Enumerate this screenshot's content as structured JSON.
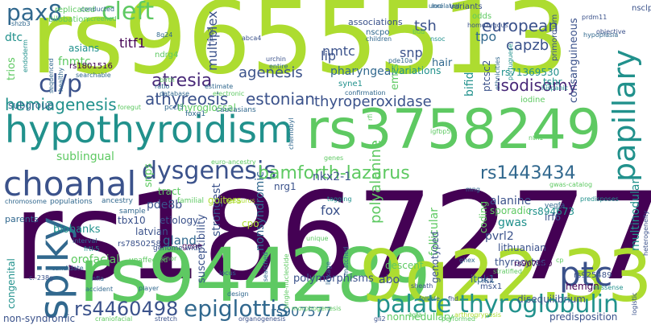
{
  "words": [
    {
      "text": "rs9655513",
      "color": "#addc30"
    },
    {
      "text": "rs1867277",
      "color": "#440154"
    },
    {
      "text": "rs944289",
      "color": "#5ec962"
    },
    {
      "text": "9q22.33",
      "color": "#addc30"
    },
    {
      "text": "hypothyroidism",
      "color": "#21918c"
    },
    {
      "text": "rs3758249",
      "color": "#5ec962"
    },
    {
      "text": "choanal",
      "color": "#3b528b"
    },
    {
      "text": "spiky",
      "color": "#31688e"
    },
    {
      "text": "ptc",
      "color": "#3b528b"
    },
    {
      "text": "papillary",
      "color": "#21918c"
    },
    {
      "text": "palate",
      "color": "#21918c"
    },
    {
      "text": "thyroglobulin",
      "color": "#21918c"
    },
    {
      "text": "epiglottis",
      "color": "#31688e"
    },
    {
      "text": "rs4460498",
      "color": "#3b528b"
    },
    {
      "text": "dysgenesis",
      "color": "#3b528b"
    },
    {
      "text": "bamforth-lazarus",
      "color": "#5ec962"
    },
    {
      "text": "rs1443434",
      "color": "#31688e"
    },
    {
      "text": "cleft",
      "color": "#5ec962"
    },
    {
      "text": "pax8",
      "color": "#31688e"
    },
    {
      "text": "cl/p",
      "color": "#3b528b"
    },
    {
      "text": "atresia",
      "color": "#482878"
    },
    {
      "text": "agenesis",
      "color": "#3b528b"
    },
    {
      "text": "athyreosis",
      "color": "#3b528b"
    },
    {
      "text": "estonian",
      "color": "#3b528b"
    },
    {
      "text": "thyroperoxidase",
      "color": "#3b528b"
    },
    {
      "text": "hemiagenesis",
      "color": "#21918c"
    },
    {
      "text": "sublingual",
      "color": "#5ec962"
    },
    {
      "text": "european",
      "color": "#3b528b"
    },
    {
      "text": "isodisomy",
      "color": "#482878"
    },
    {
      "text": "capzb",
      "color": "#3b528b"
    },
    {
      "text": "tsh",
      "color": "#3b528b"
    },
    {
      "text": "nmtc",
      "color": "#3b528b"
    },
    {
      "text": "titf1",
      "color": "#440154"
    },
    {
      "text": "multiplex",
      "color": "#3b528b"
    },
    {
      "text": "tpo",
      "color": "#31688e"
    },
    {
      "text": "snp",
      "color": "#3b528b"
    },
    {
      "text": "lip",
      "color": "#3b528b"
    },
    {
      "text": "fnmtc",
      "color": "#5ec962"
    },
    {
      "text": "trios",
      "color": "#5ec962"
    },
    {
      "text": "dtc",
      "color": "#21918c"
    },
    {
      "text": "asians",
      "color": "#21918c"
    },
    {
      "text": "rs1801516",
      "color": "#440154"
    },
    {
      "text": "subgroup",
      "color": "#31688e"
    },
    {
      "text": "pharyngeal",
      "color": "#31688e"
    },
    {
      "text": "variations",
      "color": "#21918c"
    },
    {
      "text": "hair",
      "color": "#31688e"
    },
    {
      "text": "emrs",
      "color": "#5ec962"
    },
    {
      "text": "bifid",
      "color": "#21918c"
    },
    {
      "text": "ptcsc2",
      "color": "#3b528b"
    },
    {
      "text": "rs71369530",
      "color": "#21918c"
    },
    {
      "text": "tshr",
      "color": "#21918c"
    },
    {
      "text": "consanguineous",
      "color": "#3b528b"
    },
    {
      "text": "iodine",
      "color": "#5ec962"
    },
    {
      "text": "primordium",
      "color": "#3b528b"
    },
    {
      "text": "syne1",
      "color": "#21918c"
    },
    {
      "text": "nkx2-1",
      "color": "#3b528b"
    },
    {
      "text": "snps",
      "color": "#5ec962"
    },
    {
      "text": "pde8b",
      "color": "#3b528b"
    },
    {
      "text": "polyalanine",
      "color": "#5ec962"
    },
    {
      "text": "nonsyndromic",
      "color": "#31688e"
    },
    {
      "text": "fox",
      "color": "#3b528b"
    },
    {
      "text": "alanine",
      "color": "#3b528b"
    },
    {
      "text": "gwas",
      "color": "#21918c"
    },
    {
      "text": "pvrl2",
      "color": "#3b528b"
    },
    {
      "text": "multinodular",
      "color": "#21918c"
    },
    {
      "text": "abo",
      "color": "#3b528b"
    },
    {
      "text": "follicular",
      "color": "#5ec962"
    },
    {
      "text": "strongest",
      "color": "#3b528b"
    },
    {
      "text": "gland",
      "color": "#31688e"
    },
    {
      "text": "orofacial",
      "color": "#5ec962"
    },
    {
      "text": "congenital",
      "color": "#21918c"
    },
    {
      "text": "etiology",
      "color": "#3b528b"
    },
    {
      "text": "latvian",
      "color": "#3b528b"
    },
    {
      "text": "lithuanian",
      "color": "#3b528b"
    },
    {
      "text": "biobanks",
      "color": "#21918c"
    },
    {
      "text": "thyrocytes",
      "color": "#3b528b"
    },
    {
      "text": "itpk1",
      "color": "#31688e"
    },
    {
      "text": "rs907577",
      "color": "#31688e"
    },
    {
      "text": "polymorphisms",
      "color": "#3b528b"
    },
    {
      "text": "rs894673",
      "color": "#21918c"
    },
    {
      "text": "sporadic",
      "color": "#5ec962"
    },
    {
      "text": "coding",
      "color": "#5ec962"
    },
    {
      "text": "irf6",
      "color": "#3b528b"
    },
    {
      "text": "rs907580",
      "color": "#440154"
    },
    {
      "text": "rs925489",
      "color": "#3b528b"
    },
    {
      "text": "hemgn",
      "color": "#440154"
    },
    {
      "text": "nrg1",
      "color": "#3b528b"
    },
    {
      "text": "descent",
      "color": "#5ec962"
    },
    {
      "text": "genotyped",
      "color": "#3b528b"
    },
    {
      "text": "susceptibility",
      "color": "#3b528b"
    },
    {
      "text": "goiters",
      "color": "#addc30"
    },
    {
      "text": "tract",
      "color": "#5ec962"
    },
    {
      "text": "tbx10",
      "color": "#3b528b"
    },
    {
      "text": "rs7850258",
      "color": "#3b528b"
    },
    {
      "text": "gene",
      "color": "#440154"
    },
    {
      "text": "parents",
      "color": "#31688e"
    },
    {
      "text": "non-syndromic",
      "color": "#3b528b"
    },
    {
      "text": "disequilibrium",
      "color": "#3b528b"
    },
    {
      "text": "predisposition",
      "color": "#3b528b"
    },
    {
      "text": "nonmedullary",
      "color": "#5ec962"
    },
    {
      "text": "msx1",
      "color": "#3b528b"
    },
    {
      "text": "thyroglossal",
      "color": "#5ec962"
    },
    {
      "text": "associations",
      "color": "#3b528b"
    },
    {
      "text": "nscpo",
      "color": "#31688e"
    },
    {
      "text": "replicated",
      "color": "#5ec962"
    },
    {
      "text": "bilobation",
      "color": "#5ec962"
    },
    {
      "text": "variants",
      "color": "#3b528b"
    },
    {
      "text": "odds",
      "color": "#5ec962"
    },
    {
      "text": "nsclp",
      "color": "#3b528b"
    },
    {
      "text": "ndrg4",
      "color": "#5ec962"
    },
    {
      "text": "caucasians",
      "color": "#31688e"
    },
    {
      "text": "pccl3",
      "color": "#31688e"
    },
    {
      "text": "foxq1",
      "color": "#31688e"
    },
    {
      "text": "familial",
      "color": "#5ec962"
    },
    {
      "text": "ancestry",
      "color": "#31688e"
    },
    {
      "text": "populations",
      "color": "#31688e"
    },
    {
      "text": "chromosome",
      "color": "#31688e"
    },
    {
      "text": "sample",
      "color": "#31688e"
    },
    {
      "text": "interval",
      "color": "#31688e"
    },
    {
      "text": "frtl-5",
      "color": "#21918c"
    },
    {
      "text": "genome-wide",
      "color": "#3b528b"
    },
    {
      "text": "unaffected",
      "color": "#5ec962"
    },
    {
      "text": "locus",
      "color": "#31688e"
    },
    {
      "text": "searched",
      "color": "#31688e"
    },
    {
      "text": "linkage",
      "color": "#31688e"
    },
    {
      "text": "matched",
      "color": "#31688e"
    },
    {
      "text": "tagging",
      "color": "#21918c"
    },
    {
      "text": "vegfa",
      "color": "#31688e"
    },
    {
      "text": "predisposes",
      "color": "#21918c"
    },
    {
      "text": "missense",
      "color": "#21918c"
    },
    {
      "text": "stratified",
      "color": "#5ec962"
    },
    {
      "text": "risk",
      "color": "#3b528b"
    },
    {
      "text": "follicle",
      "color": "#31688e"
    },
    {
      "text": "sheath",
      "color": "#3b528b"
    },
    {
      "text": "performed",
      "color": "#5ec962"
    },
    {
      "text": "gli2",
      "color": "#3b528b"
    },
    {
      "text": "organogenesis",
      "color": "#3b528b"
    },
    {
      "text": "morphogenesis",
      "color": "#5ec962"
    },
    {
      "text": "stretch",
      "color": "#3b528b"
    },
    {
      "text": "craniofacial",
      "color": "#5ec962"
    },
    {
      "text": "accident",
      "color": "#31688e"
    },
    {
      "text": "player",
      "color": "#31688e"
    },
    {
      "text": "design",
      "color": "#31688e"
    },
    {
      "text": "nfia",
      "color": "#31688e"
    },
    {
      "text": "candidate",
      "color": "#31688e"
    },
    {
      "text": "c.-238g",
      "color": "#3b528b"
    },
    {
      "text": "fhd",
      "color": "#3b528b"
    },
    {
      "text": "ghex",
      "color": "#31688e"
    },
    {
      "text": "cp",
      "color": "#5ec962"
    },
    {
      "text": "logistic",
      "color": "#3b528b"
    },
    {
      "text": "heterogeneity",
      "color": "#3b528b"
    },
    {
      "text": "unrelated",
      "color": "#31688e"
    },
    {
      "text": "homozygous",
      "color": "#3b528b"
    },
    {
      "text": "loci",
      "color": "#31688e"
    },
    {
      "text": "objective",
      "color": "#3b528b"
    },
    {
      "text": "prdm11",
      "color": "#3b528b"
    },
    {
      "text": "hypoplasia",
      "color": "#31688e"
    },
    {
      "text": "children",
      "color": "#31688e"
    },
    {
      "text": "nsoc",
      "color": "#21918c"
    },
    {
      "text": "bud",
      "color": "#5ec962"
    },
    {
      "text": "abca4",
      "color": "#3b528b"
    },
    {
      "text": "8q24",
      "color": "#31688e"
    },
    {
      "text": "jag2",
      "color": "#3b528b"
    },
    {
      "text": "urchin",
      "color": "#3b528b"
    },
    {
      "text": "entire",
      "color": "#31688e"
    },
    {
      "text": "pde10a",
      "color": "#31688e"
    },
    {
      "text": "confirmation",
      "color": "#31688e"
    },
    {
      "text": "ethnicities",
      "color": "#31688e"
    },
    {
      "text": "portuguese",
      "color": "#21918c"
    },
    {
      "text": "hispanic",
      "color": "#21918c"
    },
    {
      "text": "estimate",
      "color": "#31688e"
    },
    {
      "text": "electronic",
      "color": "#5ec962"
    },
    {
      "text": "database",
      "color": "#31688e"
    },
    {
      "text": "ratio",
      "color": "#31688e"
    },
    {
      "text": "birth",
      "color": "#5ec962"
    },
    {
      "text": "searchable",
      "color": "#31688e"
    },
    {
      "text": "sequenced",
      "color": "#31688e"
    },
    {
      "text": "healthy",
      "color": "#31688e"
    },
    {
      "text": "endoderm",
      "color": "#21918c"
    },
    {
      "text": "shzb3",
      "color": "#31688e"
    },
    {
      "text": "conducted",
      "color": "#31688e"
    },
    {
      "text": "screened",
      "color": "#5ec962"
    },
    {
      "text": "foregut",
      "color": "#5ec962"
    },
    {
      "text": "igfbp5",
      "color": "#5ec962"
    },
    {
      "text": "chernobyl",
      "color": "#31688e"
    },
    {
      "text": "ntn1",
      "color": "#5ec962"
    },
    {
      "text": "rfi",
      "color": "#5ec962"
    },
    {
      "text": "genes",
      "color": "#5ec962"
    },
    {
      "text": "minor",
      "color": "#5ec962"
    },
    {
      "text": "mng",
      "color": "#31688e"
    },
    {
      "text": "hesaurus",
      "color": "#addc30"
    },
    {
      "text": "single-nucleotide",
      "color": "#5ec962"
    },
    {
      "text": "unique",
      "color": "#5ec962"
    },
    {
      "text": "cpo",
      "color": "#addc30"
    },
    {
      "text": "arthrogryposis",
      "color": "#addc30"
    },
    {
      "text": "euro-ancestry",
      "color": "#5ec962"
    },
    {
      "text": "gwas-catalog",
      "color": "#5ec962"
    },
    {
      "text": "tgfa",
      "color": "#5ec962"
    }
  ]
}
